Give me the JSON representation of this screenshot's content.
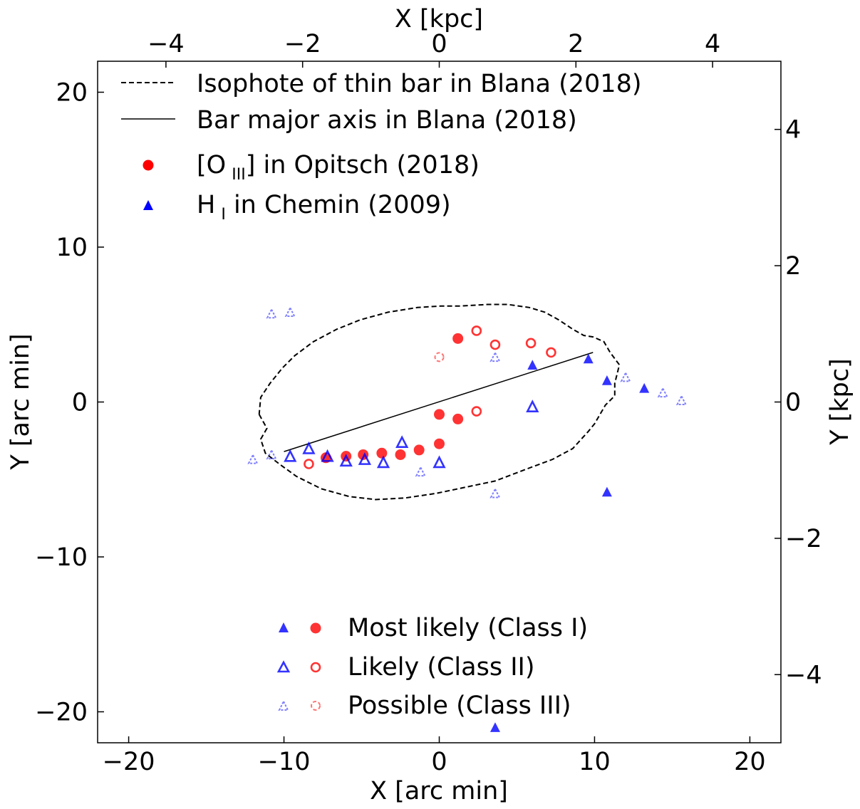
{
  "chart_data": {
    "type": "scatter",
    "axes": {
      "bottom": {
        "label": "X [arc min]",
        "lim": [
          -22,
          22
        ],
        "ticks": [
          -20,
          -10,
          0,
          10,
          20
        ],
        "tick_labels": [
          "−20",
          "−10",
          "0",
          "10",
          "20"
        ]
      },
      "left": {
        "label": "Y [arc min]",
        "lim": [
          -22,
          22
        ],
        "ticks": [
          -20,
          -10,
          0,
          10,
          20
        ],
        "tick_labels": [
          "−20",
          "−10",
          "0",
          "10",
          "20"
        ]
      },
      "top": {
        "label": "X [kpc]",
        "lim": [
          -5.0,
          5.0
        ],
        "ticks": [
          -4,
          -2,
          0,
          2,
          4
        ],
        "tick_labels": [
          "−4",
          "−2",
          "0",
          "2",
          "4"
        ]
      },
      "right": {
        "label": "Y [kpc]",
        "lim": [
          -5.0,
          5.0
        ],
        "ticks": [
          -4,
          -2,
          0,
          2,
          4
        ],
        "tick_labels": [
          "−4",
          "−2",
          "0",
          "2",
          "4"
        ]
      }
    },
    "legend_top": [
      {
        "label": "Isophote of thin bar in Blana (2018)",
        "marker": "dashed-line"
      },
      {
        "label": "Bar major axis in Blana (2018)",
        "marker": "solid-line"
      },
      {
        "label_main": "[O",
        "label_sub": "III",
        "label_rest": "] in Opitsch (2018)",
        "marker": "red-circle"
      },
      {
        "label_main": "H",
        "label_sub": "I",
        "label_rest": " in Chemin (2009)",
        "marker": "blue-triangle"
      }
    ],
    "legend_bottom": [
      {
        "label": "Most likely (Class I)",
        "class": 1
      },
      {
        "label": "Likely (Class II)",
        "class": 2
      },
      {
        "label": "Possible (Class III)",
        "class": 3
      }
    ],
    "colors": {
      "oiii": "#ff0000",
      "hi": "#0000ff",
      "line": "#000000"
    },
    "bar_major_axis": [
      [
        -10,
        -3.2
      ],
      [
        9.9,
        3.2
      ]
    ],
    "isophote": [
      [
        -11.6,
        -0.8
      ],
      [
        -11.1,
        -1.7
      ],
      [
        -11.5,
        -2.4
      ],
      [
        -11.2,
        -3.3
      ],
      [
        -10.3,
        -4.0
      ],
      [
        -9.2,
        -4.8
      ],
      [
        -7.6,
        -5.6
      ],
      [
        -5.8,
        -6.1
      ],
      [
        -4.1,
        -6.3
      ],
      [
        -2.2,
        -6.2
      ],
      [
        -0.2,
        -5.9
      ],
      [
        1.7,
        -5.5
      ],
      [
        3.6,
        -5.1
      ],
      [
        5.7,
        -4.3
      ],
      [
        7.3,
        -3.7
      ],
      [
        8.6,
        -3.0
      ],
      [
        9.6,
        -1.9
      ],
      [
        10.0,
        -1.4
      ],
      [
        10.7,
        -0.2
      ],
      [
        11.3,
        0.4
      ],
      [
        11.3,
        1.2
      ],
      [
        11.6,
        2.4
      ],
      [
        11.0,
        3.2
      ],
      [
        10.6,
        3.9
      ],
      [
        9.9,
        4.2
      ],
      [
        9.3,
        4.3
      ],
      [
        8.6,
        4.7
      ],
      [
        7.7,
        5.3
      ],
      [
        6.8,
        5.8
      ],
      [
        5.8,
        6.1
      ],
      [
        4.4,
        6.3
      ],
      [
        3.1,
        6.3
      ],
      [
        1.4,
        6.2
      ],
      [
        0.1,
        6.2
      ],
      [
        -1.4,
        6.1
      ],
      [
        -3.3,
        5.8
      ],
      [
        -5.1,
        5.3
      ],
      [
        -6.6,
        4.7
      ],
      [
        -8.1,
        3.9
      ],
      [
        -9.3,
        3.0
      ],
      [
        -10.1,
        2.2
      ],
      [
        -10.9,
        1.2
      ],
      [
        -11.5,
        0.3
      ],
      [
        -11.6,
        -0.8
      ]
    ],
    "series": [
      {
        "name": "[OIII] Class I",
        "tracer": "oiii",
        "class": 1,
        "points": [
          [
            -7.3,
            -3.6
          ],
          [
            -6.0,
            -3.5
          ],
          [
            -4.9,
            -3.4
          ],
          [
            -3.7,
            -3.3
          ],
          [
            -2.5,
            -3.4
          ],
          [
            -1.3,
            -3.1
          ],
          [
            0.0,
            -2.7
          ],
          [
            0.0,
            -0.8
          ],
          [
            1.2,
            -1.1
          ],
          [
            1.2,
            4.1
          ]
        ]
      },
      {
        "name": "[OIII] Class II",
        "tracer": "oiii",
        "class": 2,
        "points": [
          [
            -8.4,
            -4.0
          ],
          [
            2.4,
            4.6
          ],
          [
            3.6,
            3.7
          ],
          [
            2.4,
            -0.6
          ],
          [
            5.9,
            3.8
          ],
          [
            7.2,
            3.2
          ]
        ]
      },
      {
        "name": "[OIII] Class III",
        "tracer": "oiii",
        "class": 3,
        "points": [
          [
            0.0,
            2.9
          ]
        ]
      },
      {
        "name": "HI Class I",
        "tracer": "hi",
        "class": 1,
        "points": [
          [
            6.0,
            2.4
          ],
          [
            9.6,
            2.8
          ],
          [
            10.8,
            1.4
          ],
          [
            13.2,
            0.9
          ],
          [
            10.8,
            -5.8
          ],
          [
            3.6,
            -21.0
          ]
        ]
      },
      {
        "name": "HI Class II",
        "tracer": "hi",
        "class": 2,
        "points": [
          [
            -9.6,
            -3.5
          ],
          [
            -8.4,
            -3.0
          ],
          [
            -7.2,
            -3.5
          ],
          [
            -6.0,
            -3.8
          ],
          [
            -4.8,
            -3.7
          ],
          [
            -3.6,
            -3.9
          ],
          [
            -2.4,
            -2.6
          ],
          [
            0.0,
            -3.9
          ],
          [
            6.0,
            -0.3
          ]
        ]
      },
      {
        "name": "HI Class III",
        "tracer": "hi",
        "class": 3,
        "points": [
          [
            -10.8,
            5.7
          ],
          [
            -9.6,
            5.8
          ],
          [
            -12.0,
            -3.7
          ],
          [
            -10.8,
            -3.4
          ],
          [
            -1.2,
            -4.5
          ],
          [
            3.6,
            2.9
          ],
          [
            3.6,
            -5.9
          ],
          [
            12.0,
            1.6
          ],
          [
            14.4,
            0.6
          ],
          [
            15.6,
            0.1
          ]
        ]
      }
    ]
  }
}
